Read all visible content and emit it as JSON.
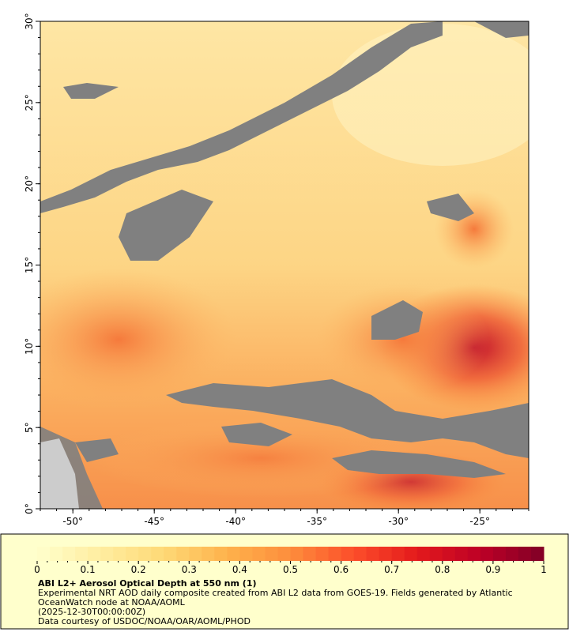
{
  "map": {
    "lon_axis": {
      "lim": [
        -52,
        -22
      ],
      "ticks": [
        {
          "value": -50,
          "label": "-50°"
        },
        {
          "value": -45,
          "label": "-45°"
        },
        {
          "value": -40,
          "label": "-40°"
        },
        {
          "value": -35,
          "label": "-35°"
        },
        {
          "value": -30,
          "label": "-30°"
        },
        {
          "value": -25,
          "label": "-25°"
        }
      ]
    },
    "lat_axis": {
      "lim": [
        0,
        30
      ],
      "ticks": [
        {
          "value": 0,
          "label": "0°"
        },
        {
          "value": 5,
          "label": "5°"
        },
        {
          "value": 10,
          "label": "10°"
        },
        {
          "value": 15,
          "label": "15°"
        },
        {
          "value": 20,
          "label": "20°"
        },
        {
          "value": 25,
          "label": "25°"
        },
        {
          "value": 30,
          "label": "30°"
        }
      ]
    },
    "colorbar": {
      "lim": [
        0,
        1
      ],
      "ticks": [
        0,
        0.1,
        0.2,
        0.3,
        0.4,
        0.5,
        0.6,
        0.7,
        0.8,
        0.9,
        1
      ],
      "colors": [
        "#ffffcc",
        "#ffeda0",
        "#fed976",
        "#feb24c",
        "#fd8d3c",
        "#fc4e2a",
        "#e31a1c",
        "#bd0026",
        "#800026"
      ]
    },
    "title": "ABI L2+ Aerosol Optical Depth at 550 nm (1)",
    "description": "Experimental NRT AOD daily composite created from ABI L2 data from GOES-19. Fields generated by Atlantic OceanWatch node at NOAA/AOML",
    "timestamp": "(2025-12-30T00:00:00Z)",
    "credit": "Data courtesy of USDOC/NOAA/OAR/AOML/PHOD"
  }
}
